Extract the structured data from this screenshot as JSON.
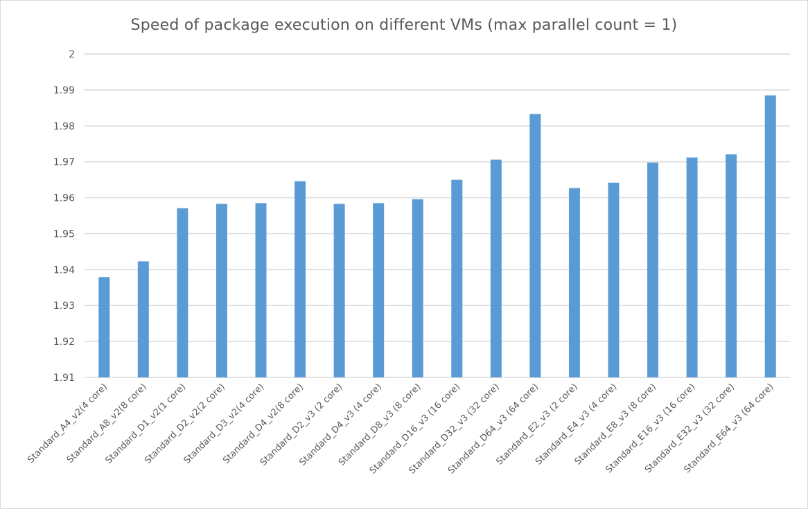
{
  "chart_data": {
    "type": "bar",
    "title": "Speed of package execution on different VMs (max parallel count = 1)",
    "xlabel": "",
    "ylabel": "",
    "ylim": [
      1.91,
      2
    ],
    "yticks": [
      "1.91",
      "1.92",
      "1.93",
      "1.94",
      "1.95",
      "1.96",
      "1.97",
      "1.98",
      "1.99",
      "2"
    ],
    "grid": true,
    "legend": "none",
    "bar_color": "#5b9bd5",
    "categories": [
      "Standard_A4_v2(4 core)",
      "Standard_A8_v2(8 core)",
      "Standard_D1_v2(1 core)",
      "Standard_D2_v2(2 core)",
      "Standard_D3_v2(4 core)",
      "Standard_D4_v2(8 core)",
      "Standard_D2_v3 (2 core)",
      "Standard_D4_v3 (4 core)",
      "Standard_D8_v3 (8 core)",
      "Standard_D16_v3 (16 core)",
      "Standard_D32_v3 (32 core)",
      "Standard_D64_v3 (64 core)",
      "Standard_E2_v3 (2 core)",
      "Standard_E4_v3 (4 core)",
      "Standard_E8_v3 (8 core)",
      "Standard_E16_v3 (16 core)",
      "Standard_E32_v3 (32 core)",
      "Standard_E64_v3 (64 core)"
    ],
    "values": [
      1.9379,
      1.9423,
      1.9571,
      1.9583,
      1.9585,
      1.9646,
      1.9583,
      1.9585,
      1.9596,
      1.965,
      1.9706,
      1.9833,
      1.9627,
      1.9642,
      1.9698,
      1.9712,
      1.9721,
      1.9885
    ]
  }
}
